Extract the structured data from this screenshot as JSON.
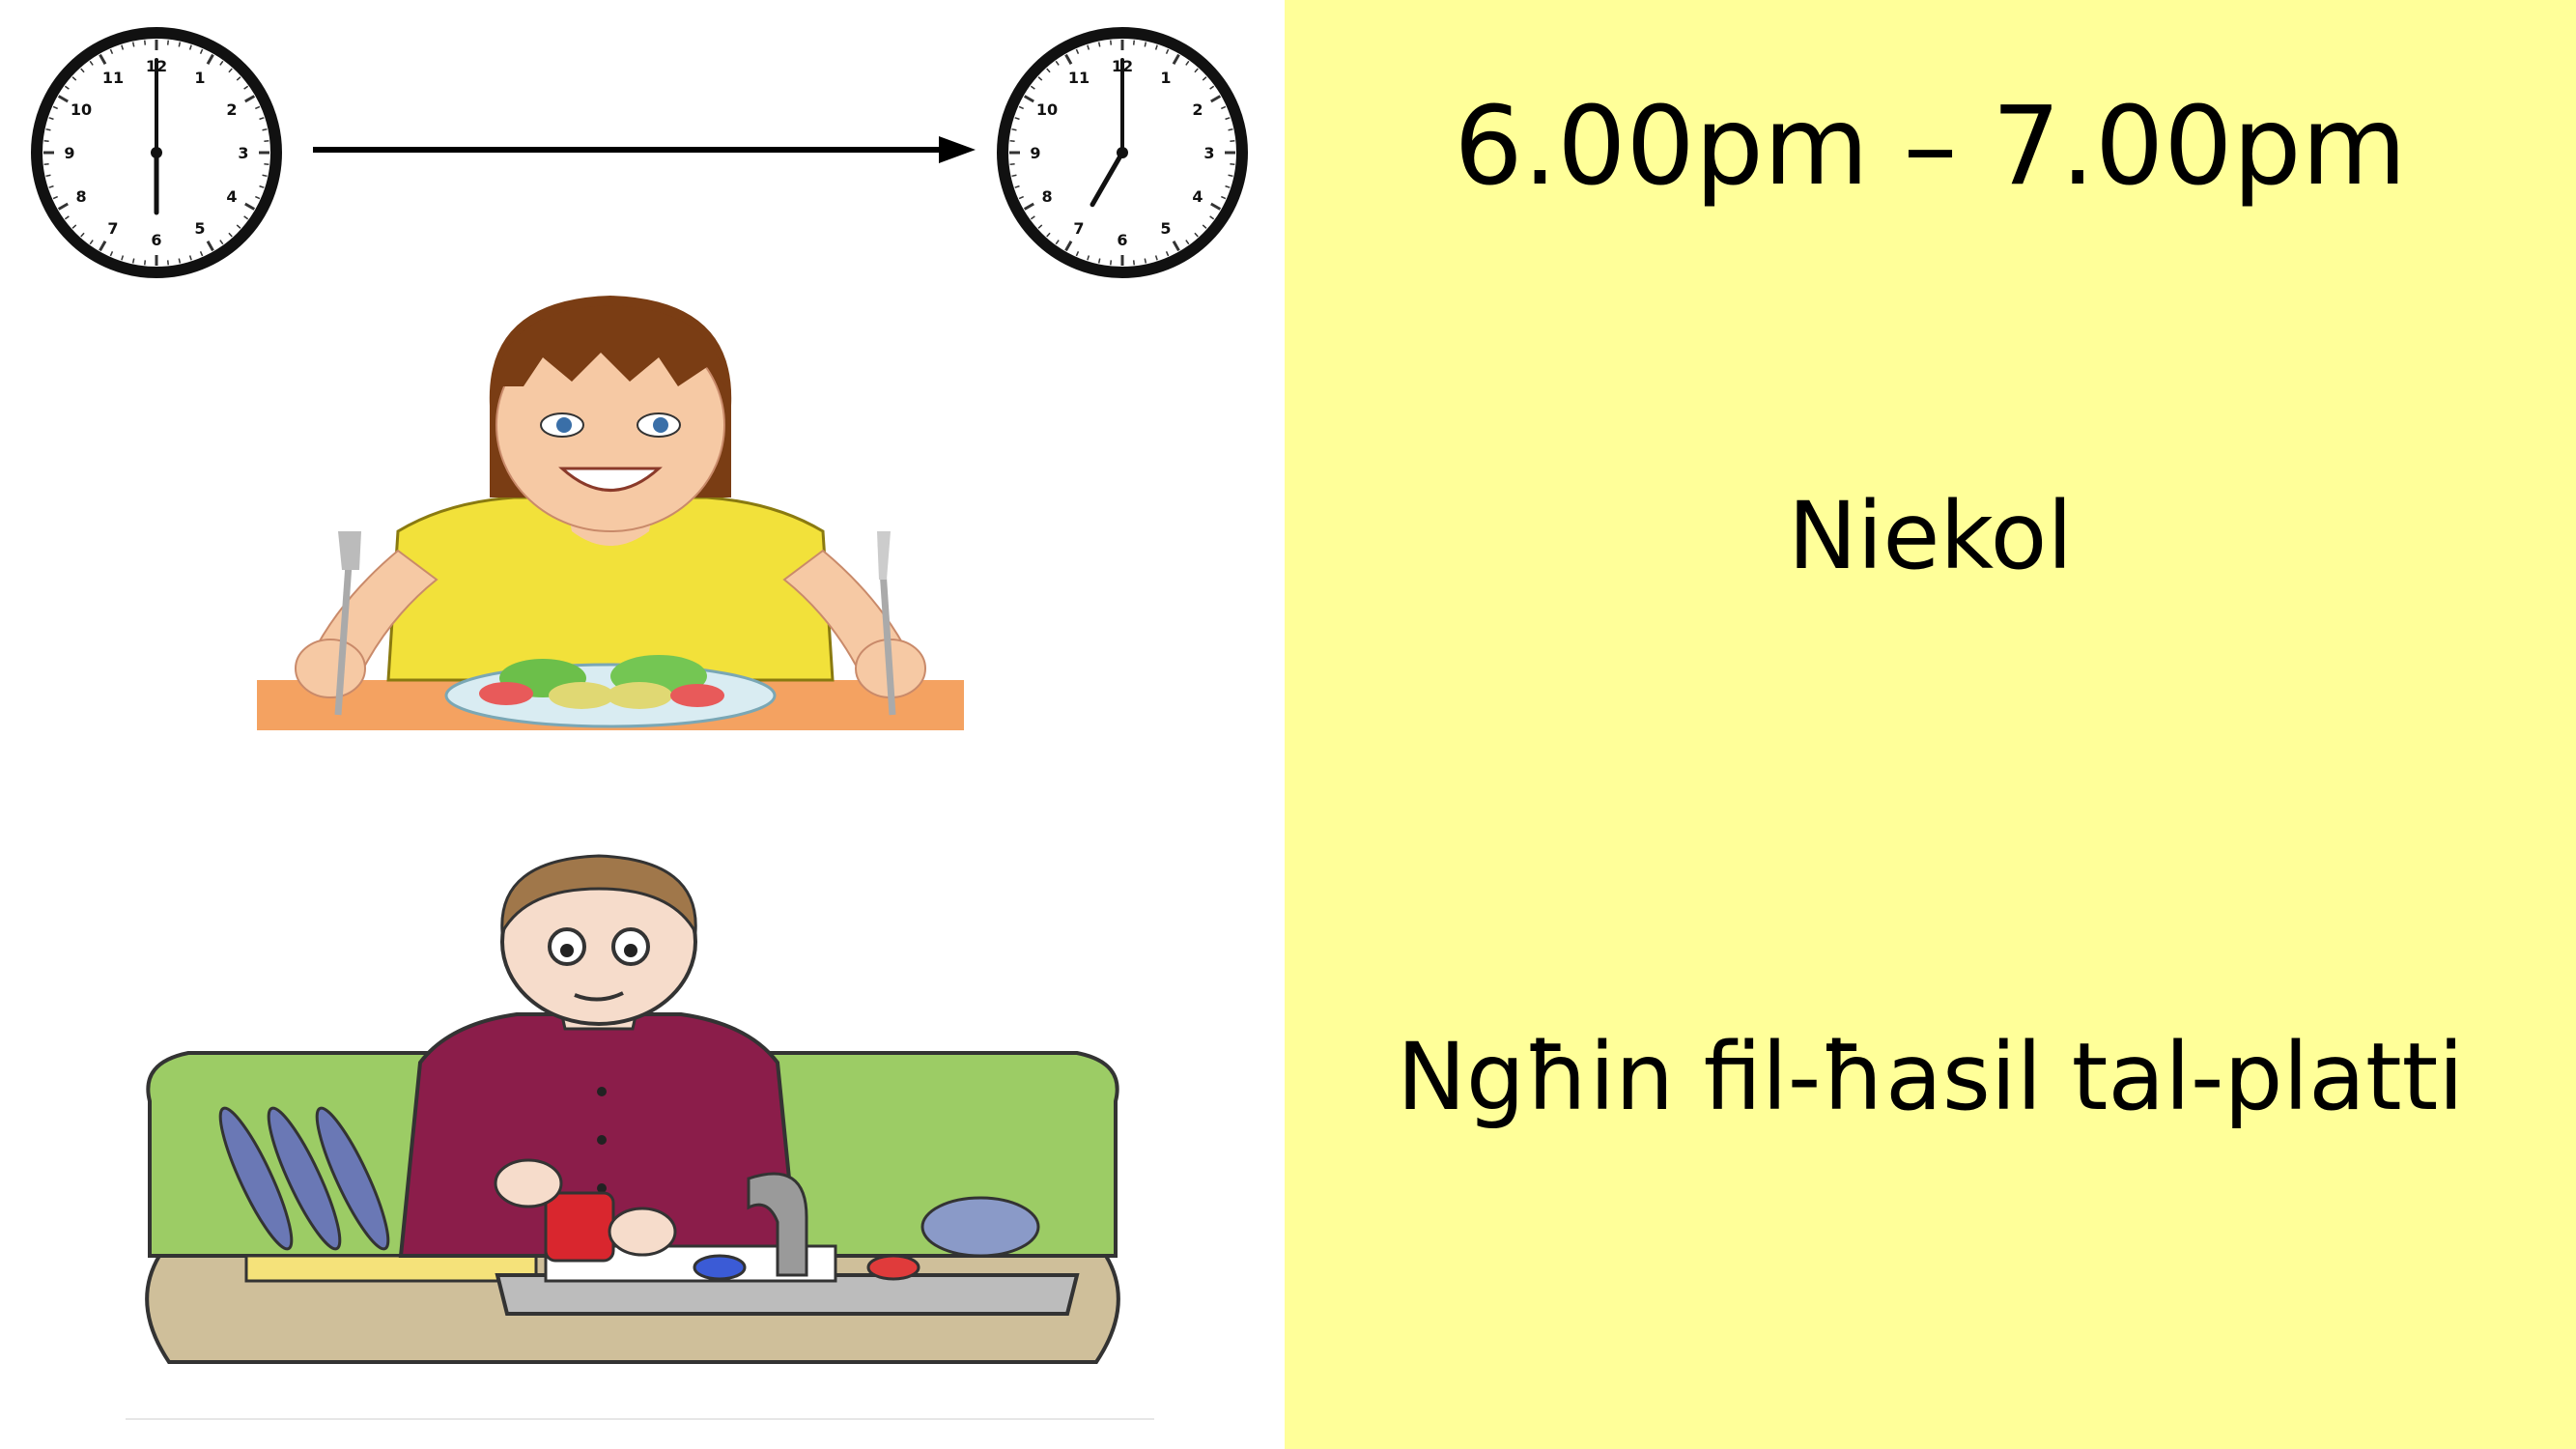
{
  "slide": {
    "time_range": "6.00pm – 7.00pm",
    "activity_1": "Niekol",
    "activity_2": "Ngħin fil-ħasil tal-platti"
  },
  "clocks": {
    "start": {
      "hour": 6,
      "minute": 0
    },
    "end": {
      "hour": 7,
      "minute": 0
    },
    "numerals": [
      "12",
      "1",
      "2",
      "3",
      "4",
      "5",
      "6",
      "7",
      "8",
      "9",
      "10",
      "11"
    ]
  },
  "colors": {
    "right_background": "#ffff99",
    "shirt_girl": "#f2e13a",
    "shirt_man": "#8b1d4a",
    "counter_green": "#9ccc65"
  },
  "icons": [
    "start-clock-icon",
    "arrow-icon",
    "end-clock-icon",
    "girl-eating-icon",
    "man-washing-dishes-icon"
  ]
}
